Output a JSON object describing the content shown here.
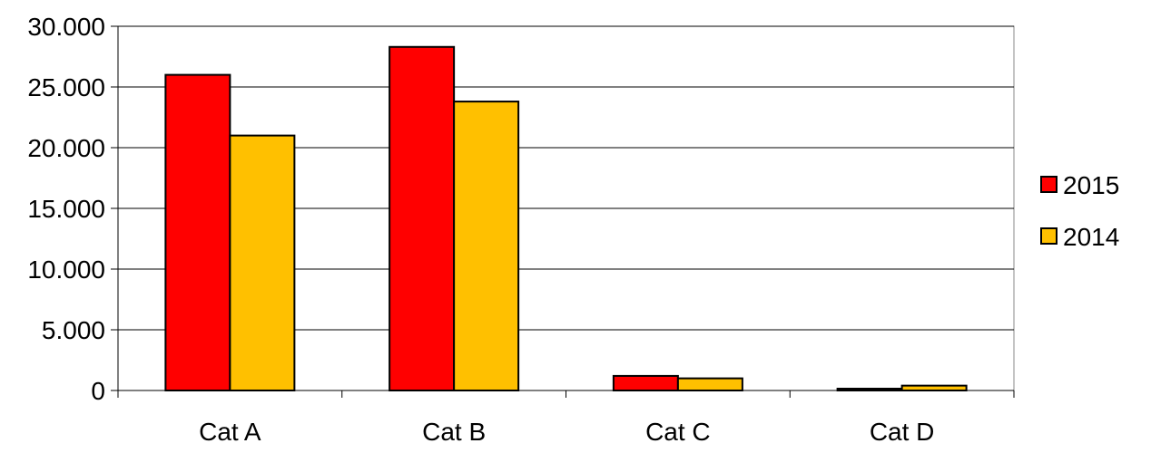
{
  "chart_data": {
    "type": "bar",
    "title": "",
    "xlabel": "",
    "ylabel": "",
    "categories": [
      "Cat A",
      "Cat B",
      "Cat C",
      "Cat D"
    ],
    "series": [
      {
        "name": "2015",
        "color": "#ff0000",
        "values": [
          26000,
          28300,
          1200,
          150
        ]
      },
      {
        "name": "2014",
        "color": "#ffc000",
        "values": [
          21000,
          23800,
          1000,
          400
        ]
      }
    ],
    "ylim": [
      0,
      30000
    ],
    "yticks": [
      0,
      5000,
      10000,
      15000,
      20000,
      25000,
      30000
    ],
    "ytick_labels": [
      "0",
      "5.000",
      "10.000",
      "15.000",
      "20.000",
      "25.000",
      "30.000"
    ],
    "grid": true,
    "legend_position": "right"
  }
}
